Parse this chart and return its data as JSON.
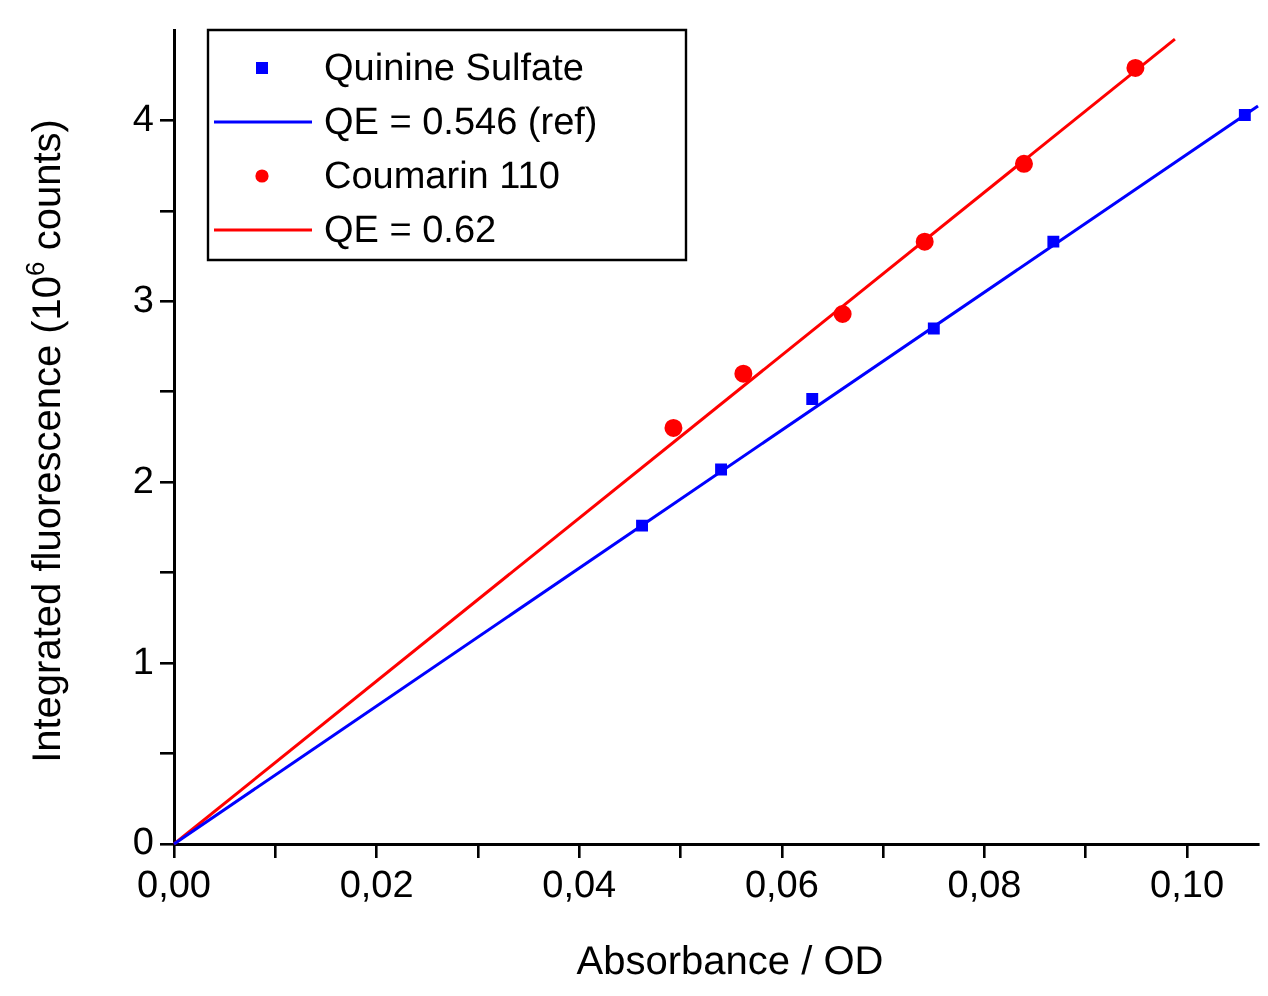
{
  "chart_data": {
    "type": "scatter",
    "xlabel": "Absorbance / OD",
    "ylabel": "Integrated fluorescence (10$^{6}$ counts)",
    "xlim": [
      0,
      0.107
    ],
    "ylim": [
      0,
      4.5
    ],
    "xticks": [
      {
        "value": 0,
        "label": "0,00"
      },
      {
        "value": 0.01,
        "label": null
      },
      {
        "value": 0.02,
        "label": "0,02"
      },
      {
        "value": 0.03,
        "label": null
      },
      {
        "value": 0.04,
        "label": "0,04"
      },
      {
        "value": 0.05,
        "label": null
      },
      {
        "value": 0.06,
        "label": "0,06"
      },
      {
        "value": 0.07,
        "label": null
      },
      {
        "value": 0.08,
        "label": "0,08"
      },
      {
        "value": 0.09,
        "label": null
      },
      {
        "value": 0.1,
        "label": "0,10"
      }
    ],
    "yticks": [
      0,
      {
        "value": 0.5,
        "label": null
      },
      1,
      {
        "value": 1.5,
        "label": null
      },
      2,
      {
        "value": 2.5,
        "label": null
      },
      3,
      {
        "value": 3.5,
        "label": null
      },
      4
    ],
    "grid": false,
    "legend": "top left",
    "series": [
      {
        "name": "Quinine Sulfate",
        "type": "scatter",
        "marker": "square",
        "color": "#0000ff",
        "x": [
          0.0462,
          0.054,
          0.063,
          0.075,
          0.0868,
          0.1057
        ],
        "values": [
          1.76,
          2.07,
          2.46,
          2.85,
          3.33,
          4.03
        ]
      },
      {
        "name": "QE = 0.546 (ref)",
        "type": "line",
        "marker": "none",
        "line_style": "solid",
        "color": "#0000ff",
        "x": [
          0,
          0.107
        ],
        "values": [
          0,
          4.08
        ]
      },
      {
        "name": "Coumarin 110",
        "type": "scatter",
        "marker": "circle",
        "color": "#ff0000",
        "x": [
          0.0493,
          0.0562,
          0.066,
          0.0741,
          0.0839,
          0.0949
        ],
        "values": [
          2.3,
          2.6,
          2.93,
          3.33,
          3.76,
          4.29
        ]
      },
      {
        "name": "QE = 0.62",
        "type": "line",
        "marker": "none",
        "line_style": "solid",
        "color": "#ff0000",
        "x": [
          0,
          0.0988
        ],
        "values": [
          0,
          4.45
        ]
      }
    ]
  }
}
